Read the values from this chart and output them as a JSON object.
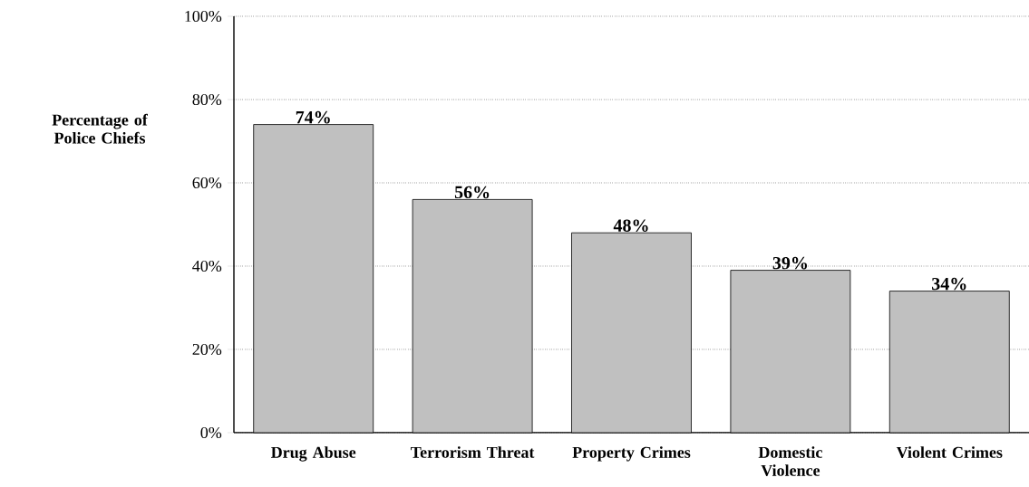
{
  "chart_data": {
    "type": "bar",
    "ylabel": "Percentage of Police Chiefs",
    "categories": [
      "Drug Abuse",
      "Terrorism Threat",
      "Property Crimes",
      "Domestic Violence",
      "Violent Crimes"
    ],
    "values": [
      74,
      56,
      48,
      39,
      34
    ],
    "value_labels": [
      "74%",
      "56%",
      "48%",
      "39%",
      "34%"
    ],
    "color": "#c0c0c0",
    "ylim": [
      0,
      100
    ],
    "yticks": [
      {
        "value": 0,
        "label": "0%"
      },
      {
        "value": 20,
        "label": "20%"
      },
      {
        "value": 40,
        "label": "40%"
      },
      {
        "value": 60,
        "label": "60%"
      },
      {
        "value": 80,
        "label": "80%"
      },
      {
        "value": 100,
        "label": "100%"
      }
    ],
    "grid": "y"
  }
}
